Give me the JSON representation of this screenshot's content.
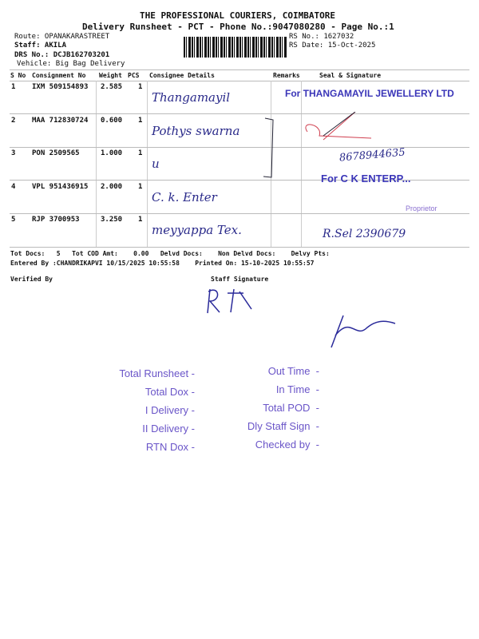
{
  "header": {
    "company": "THE PROFESSIONAL COURIERS, COIMBATORE",
    "subtitle": "Delivery Runsheet - PCT - Phone No.:9047080280 - Page No.:1",
    "route": "Route: OPANAKARASTREET",
    "staff": "Staff: AKILA",
    "drs": "DRS No.: DCJB162703201",
    "vehicle": "Vehicle: Big Bag Delivery",
    "rs_no": "RS No.: 1627032",
    "rs_date": "RS Date: 15-Oct-2025"
  },
  "table": {
    "columns": [
      "S No",
      "Consignment No",
      "Weight",
      "PCS",
      "Consignee Details",
      "Remarks",
      "Seal & Signature"
    ],
    "rows": [
      {
        "sno": "1",
        "cn": "IXM 509154893",
        "weight": "2.585",
        "pcs": "1",
        "consignee": "Thangamayil",
        "seal": "For THANGAMAYIL JEWELLERY LTD"
      },
      {
        "sno": "2",
        "cn": "MAA 712830724",
        "weight": "0.600",
        "pcs": "1",
        "consignee": "Pothys swarna",
        "seal": ""
      },
      {
        "sno": "3",
        "cn": "PON 2509565",
        "weight": "1.000",
        "pcs": "1",
        "consignee": "u",
        "seal": "8678944635"
      },
      {
        "sno": "4",
        "cn": "VPL 951436915",
        "weight": "2.000",
        "pcs": "1",
        "consignee": "C. k. Enter",
        "seal": "For C K ENTERP..."
      },
      {
        "sno": "5",
        "cn": "RJP 3700953",
        "weight": "3.250",
        "pcs": "1",
        "consignee": "meyyappa Tex.",
        "seal": "R.Sel 2390679"
      }
    ]
  },
  "stamps": {
    "proprietor": "Proprietor"
  },
  "totals": {
    "line1": "Tot Docs:   5   Tot COD Amt:    0.00   Delvd Docs:    Non Delvd Docs:    Delvy Pts:",
    "line2": "Entered By :CHANDRIKAPVI 10/15/2025 10:55:58    Printed On: 15-10-2025 10:55:57",
    "verified": "Verified By",
    "staff_sign": "Staff Signature"
  },
  "checklist": {
    "left": [
      "Total Runsheet -",
      "Total Dox -",
      "I Delivery -",
      "II Delivery -",
      "RTN Dox -"
    ],
    "right": [
      "Out Time  -",
      "In Time  -",
      "Total POD  -",
      "Dly Staff Sign  -",
      "Checked by  -"
    ]
  }
}
